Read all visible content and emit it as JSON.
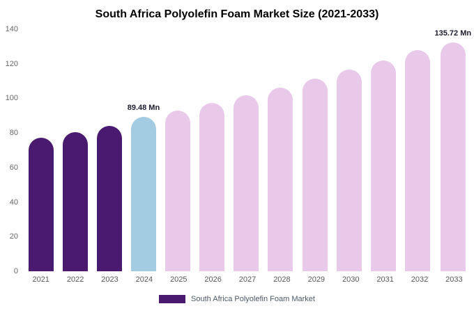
{
  "title": "South Africa Polyolefin Foam Market Size (2021-2033)",
  "legend": {
    "label": "South Africa Polyolefin Foam Market",
    "swatch_color": "#491a70"
  },
  "chart_data": {
    "type": "bar",
    "title": "South Africa Polyolefin Foam Market Size (2021-2033)",
    "categories": [
      "2021",
      "2022",
      "2023",
      "2024",
      "2025",
      "2026",
      "2027",
      "2028",
      "2029",
      "2030",
      "2031",
      "2032",
      "2033"
    ],
    "values": [
      77.1,
      80.5,
      84.2,
      89.48,
      92.8,
      97.2,
      101.8,
      106.3,
      111.4,
      116.7,
      122.1,
      128.0,
      135.72
    ],
    "bar_colors": [
      "#491a70",
      "#491a70",
      "#491a70",
      "#a3cce3",
      "#e9c9e9",
      "#e9c9e9",
      "#e9c9e9",
      "#e9c9e9",
      "#e9c9e9",
      "#e9c9e9",
      "#e9c9e9",
      "#e9c9e9",
      "#e9c9e9"
    ],
    "point_labels": [
      "",
      "",
      "",
      "89.48 Mn",
      "",
      "",
      "",
      "",
      "",
      "",
      "",
      "",
      "135.72 Mn"
    ],
    "xlabel": "",
    "ylabel": "",
    "ylim": [
      0,
      140
    ],
    "yticks": [
      0,
      20,
      40,
      60,
      80,
      100,
      120,
      140
    ],
    "grid": false,
    "legend_position": "bottom",
    "unit": "Mn"
  }
}
